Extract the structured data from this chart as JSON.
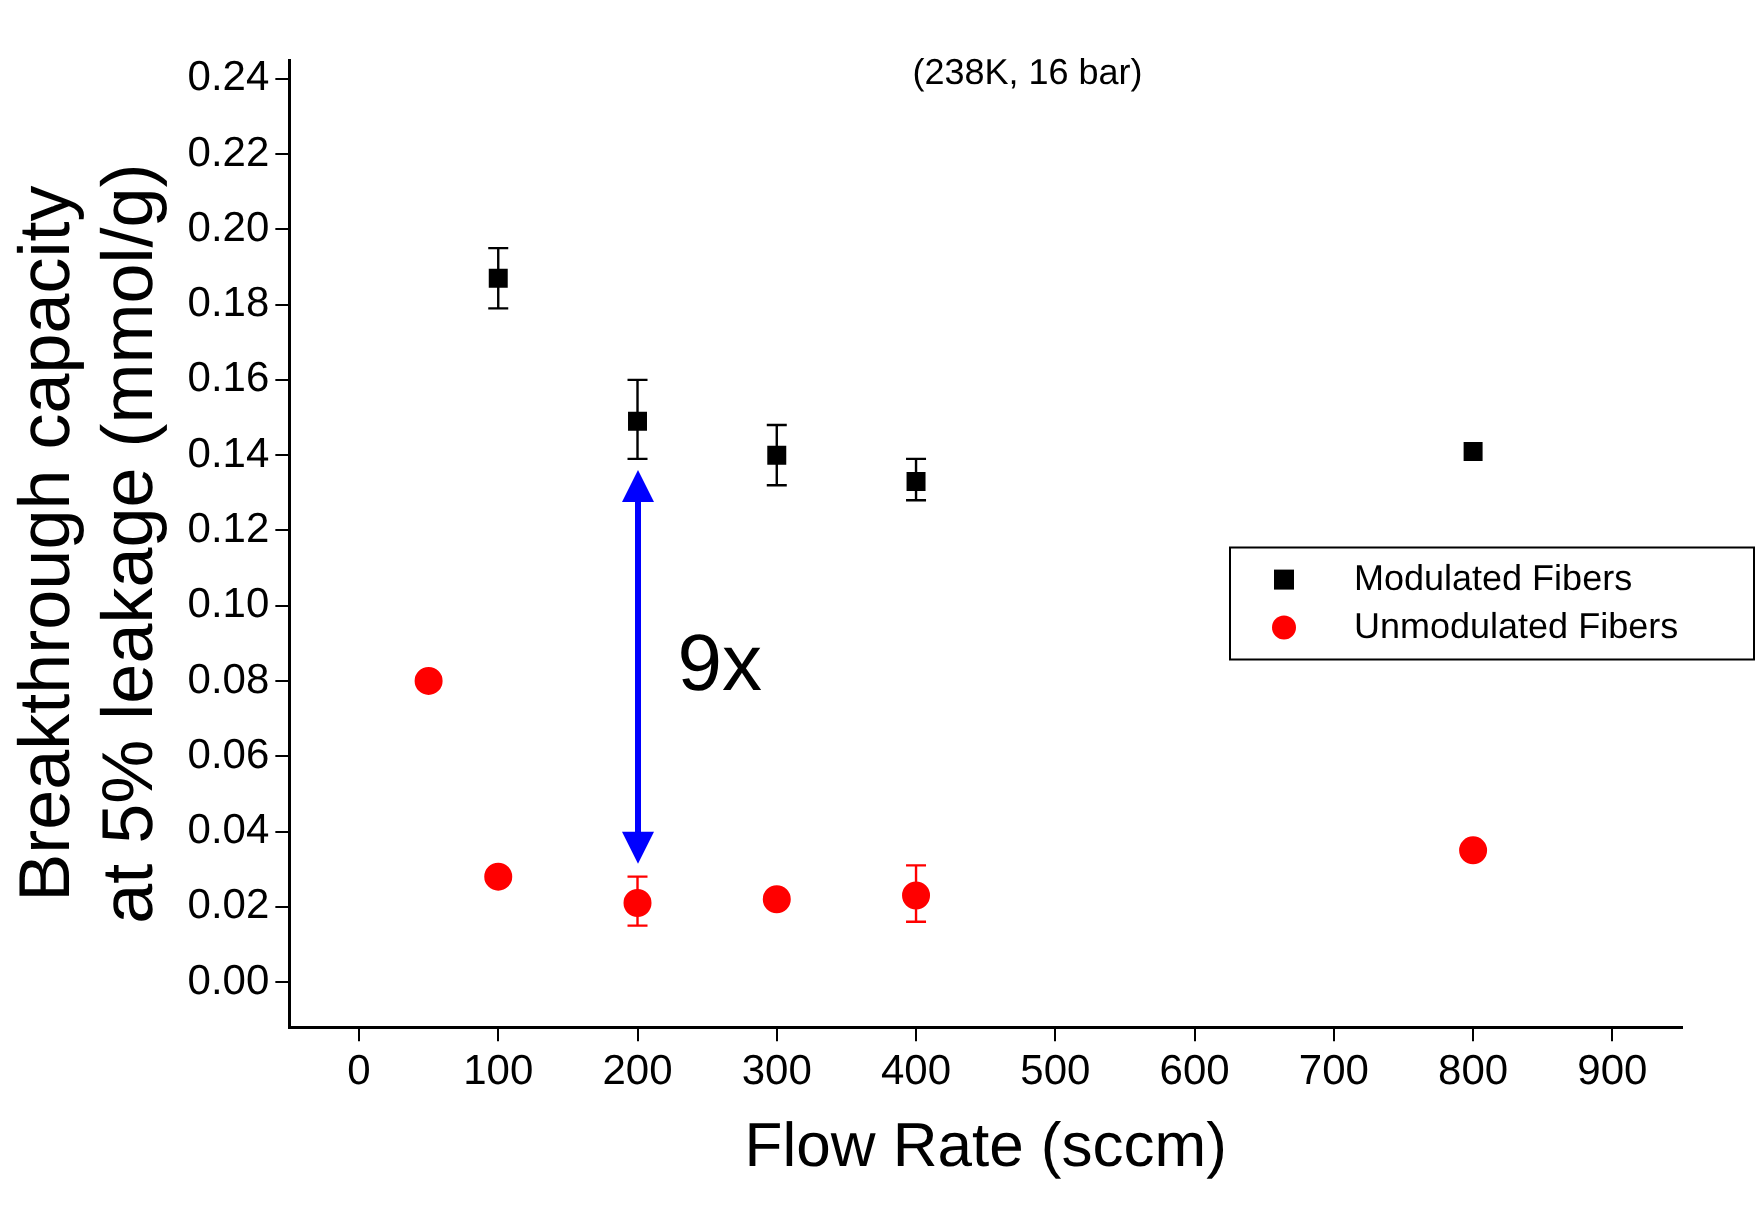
{
  "chart_data": {
    "type": "scatter",
    "xlabel": "Flow Rate (sccm)",
    "ylabel": "Breakthrough capacity\nat 5% leakage (mmol/g)",
    "annotations": [
      "(238K, 16 bar)",
      "9x"
    ],
    "xlim": [
      -50,
      950
    ],
    "xticks": [
      0,
      100,
      200,
      300,
      400,
      500,
      600,
      700,
      800,
      900
    ],
    "ylim": [
      -0.012,
      0.245
    ],
    "yticks": [
      {
        "value": 0,
        "label": "0.00"
      },
      {
        "value": 0.02,
        "label": "0.02"
      },
      {
        "value": 0.04,
        "label": "0.04"
      },
      {
        "value": 0.06,
        "label": "0.06"
      },
      {
        "value": 0.08,
        "label": "0.08"
      },
      {
        "value": 0.1,
        "label": "0.10"
      },
      {
        "value": 0.12,
        "label": "0.12"
      },
      {
        "value": 0.14,
        "label": "0.14"
      },
      {
        "value": 0.16,
        "label": "0.16"
      },
      {
        "value": 0.18,
        "label": "0.18"
      },
      {
        "value": 0.2,
        "label": "0.20"
      },
      {
        "value": 0.22,
        "label": "0.22"
      },
      {
        "value": 0.24,
        "label": "0.24"
      }
    ],
    "grid": false,
    "legend": "right",
    "series": [
      {
        "name": "Modulated Fibers",
        "color": "#000000",
        "marker": "square",
        "x": [
          100,
          200,
          300,
          400,
          800
        ],
        "values": [
          0.187,
          0.149,
          0.14,
          0.133,
          0.141
        ],
        "errors": [
          [
            0.179,
            0.195
          ],
          [
            0.139,
            0.16
          ],
          [
            0.132,
            0.148
          ],
          [
            0.128,
            0.139
          ],
          null
        ]
      },
      {
        "name": "Unmodulated Fibers",
        "color": "#ff0000",
        "marker": "circle",
        "x": [
          50,
          100,
          200,
          300,
          400,
          800
        ],
        "values": [
          0.08,
          0.028,
          0.021,
          0.022,
          0.023,
          0.035
        ],
        "errors": [
          null,
          null,
          [
            0.015,
            0.028
          ],
          null,
          [
            0.016,
            0.031
          ],
          null
        ]
      }
    ]
  }
}
